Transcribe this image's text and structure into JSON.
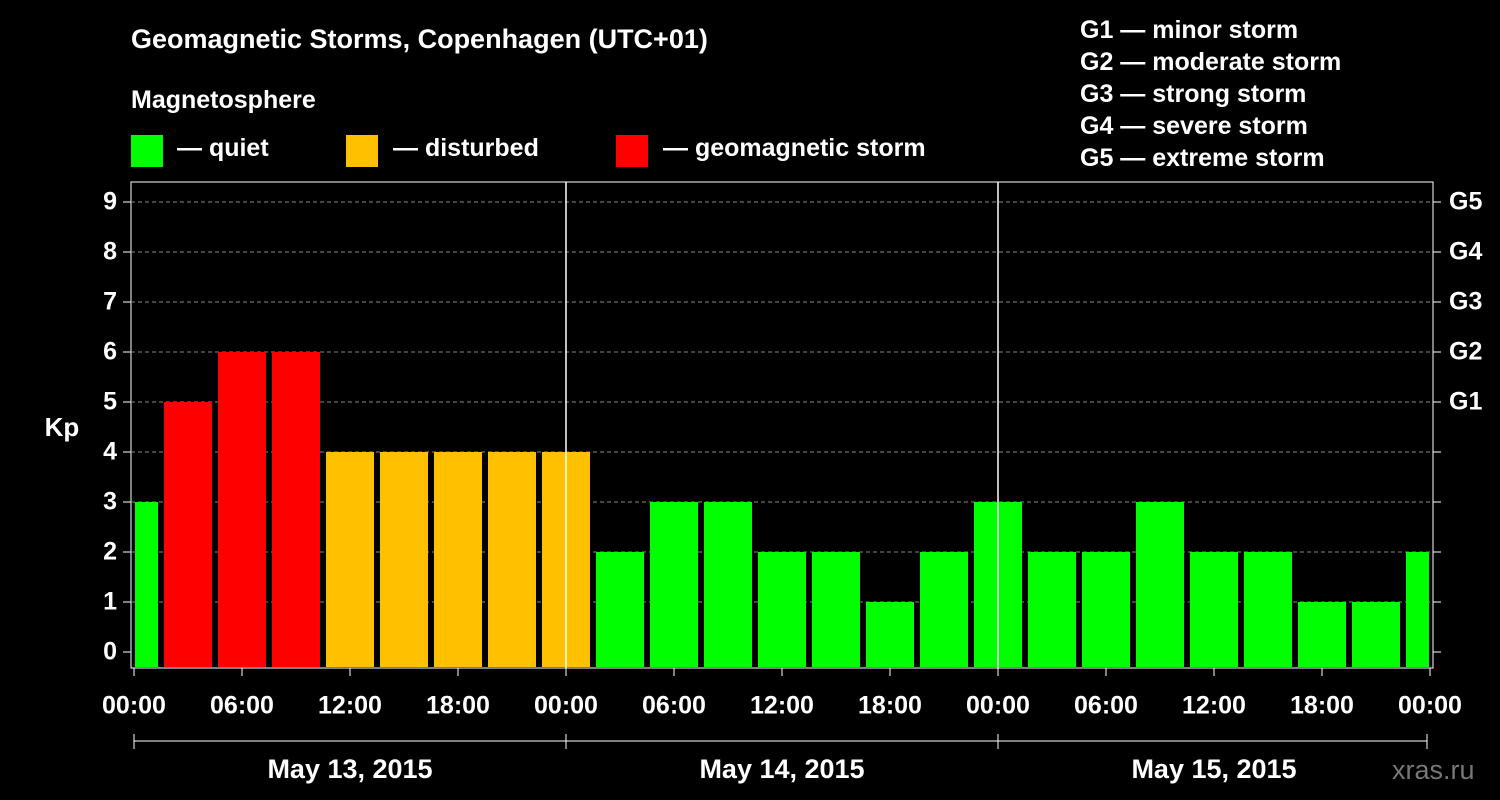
{
  "header": {
    "title": "Geomagnetic Storms, Copenhagen (UTC+01)",
    "subtitle": "Magnetosphere"
  },
  "legend": [
    {
      "label": "— quiet",
      "color": "#00ff00"
    },
    {
      "label": "— disturbed",
      "color": "#ffc000"
    },
    {
      "label": "— geomagnetic storm",
      "color": "#ff0000"
    }
  ],
  "storm_scale": [
    "G1 — minor storm",
    "G2 — moderate storm",
    "G3 — strong storm",
    "G4 — severe storm",
    "G5 — extreme storm"
  ],
  "watermark": "xras.ru",
  "chart_data": {
    "type": "bar",
    "ylabel": "Kp",
    "ylim": [
      0,
      9
    ],
    "yticks": [
      "0",
      "1",
      "2",
      "3",
      "4",
      "5",
      "6",
      "7",
      "8",
      "9"
    ],
    "right_ticks": [
      {
        "value": 5,
        "label": "G1"
      },
      {
        "value": 6,
        "label": "G2"
      },
      {
        "value": 7,
        "label": "G3"
      },
      {
        "value": 8,
        "label": "G4"
      },
      {
        "value": 9,
        "label": "G5"
      }
    ],
    "xtick_labels": [
      "00:00",
      "06:00",
      "12:00",
      "18:00",
      "00:00",
      "06:00",
      "12:00",
      "18:00",
      "00:00",
      "06:00",
      "12:00",
      "18:00",
      "00:00"
    ],
    "days": [
      "May 13, 2015",
      "May 14, 2015",
      "May 15, 2015"
    ],
    "grid": true,
    "colors": {
      "quiet": "#00ff00",
      "disturbed": "#ffc000",
      "storm": "#ff0000"
    },
    "bars": [
      {
        "time": "May 13 00:00",
        "kp": 3,
        "status": "quiet"
      },
      {
        "time": "May 13 03:00",
        "kp": 5,
        "status": "storm"
      },
      {
        "time": "May 13 06:00",
        "kp": 6,
        "status": "storm"
      },
      {
        "time": "May 13 09:00",
        "kp": 6,
        "status": "storm"
      },
      {
        "time": "May 13 12:00",
        "kp": 4,
        "status": "disturbed"
      },
      {
        "time": "May 13 15:00",
        "kp": 4,
        "status": "disturbed"
      },
      {
        "time": "May 13 18:00",
        "kp": 4,
        "status": "disturbed"
      },
      {
        "time": "May 13 21:00",
        "kp": 4,
        "status": "disturbed"
      },
      {
        "time": "May 14 00:00",
        "kp": 4,
        "status": "disturbed"
      },
      {
        "time": "May 14 03:00",
        "kp": 2,
        "status": "quiet"
      },
      {
        "time": "May 14 06:00",
        "kp": 3,
        "status": "quiet"
      },
      {
        "time": "May 14 09:00",
        "kp": 3,
        "status": "quiet"
      },
      {
        "time": "May 14 12:00",
        "kp": 2,
        "status": "quiet"
      },
      {
        "time": "May 14 15:00",
        "kp": 2,
        "status": "quiet"
      },
      {
        "time": "May 14 18:00",
        "kp": 1,
        "status": "quiet"
      },
      {
        "time": "May 14 21:00",
        "kp": 2,
        "status": "quiet"
      },
      {
        "time": "May 15 00:00",
        "kp": 3,
        "status": "quiet"
      },
      {
        "time": "May 15 03:00",
        "kp": 2,
        "status": "quiet"
      },
      {
        "time": "May 15 06:00",
        "kp": 2,
        "status": "quiet"
      },
      {
        "time": "May 15 09:00",
        "kp": 3,
        "status": "quiet"
      },
      {
        "time": "May 15 12:00",
        "kp": 2,
        "status": "quiet"
      },
      {
        "time": "May 15 15:00",
        "kp": 2,
        "status": "quiet"
      },
      {
        "time": "May 15 18:00",
        "kp": 1,
        "status": "quiet"
      },
      {
        "time": "May 15 21:00",
        "kp": 1,
        "status": "quiet"
      },
      {
        "time": "May 16 00:00",
        "kp": 2,
        "status": "quiet"
      }
    ]
  }
}
